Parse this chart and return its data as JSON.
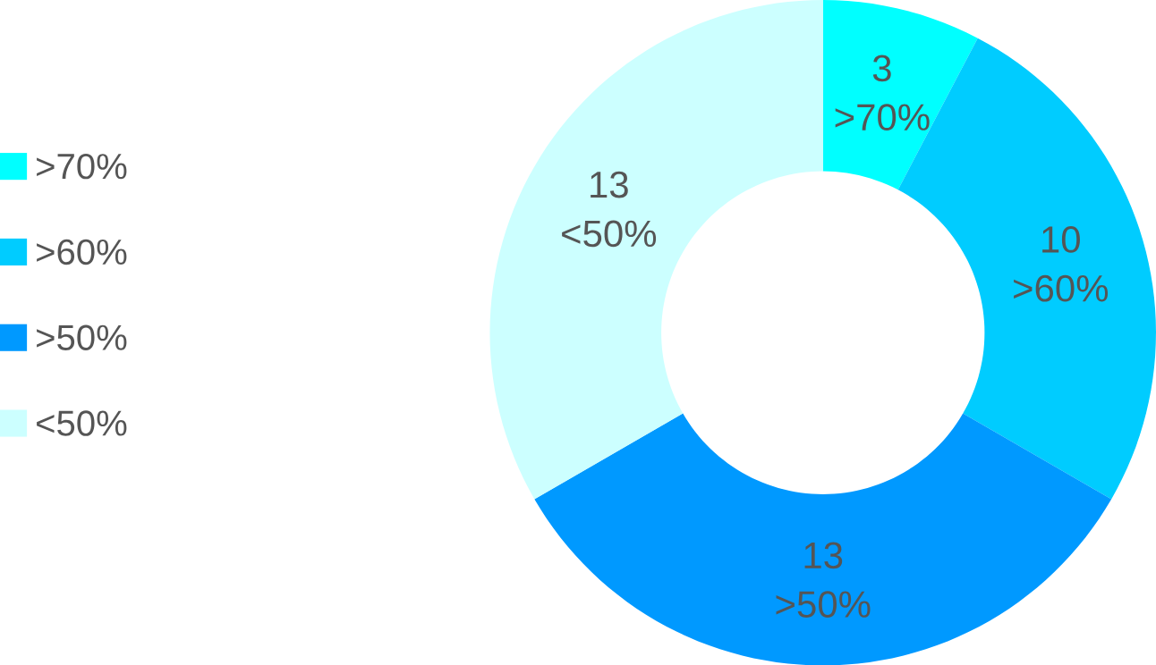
{
  "chart_data": {
    "type": "donut",
    "categories": [
      ">70%",
      ">60%",
      ">50%",
      "<50%"
    ],
    "values": [
      3,
      10,
      13,
      13
    ],
    "colors": [
      "#00ffff",
      "#00ccff",
      "#0099ff",
      "#ccffff"
    ],
    "data_labels": true,
    "legend": "left"
  }
}
